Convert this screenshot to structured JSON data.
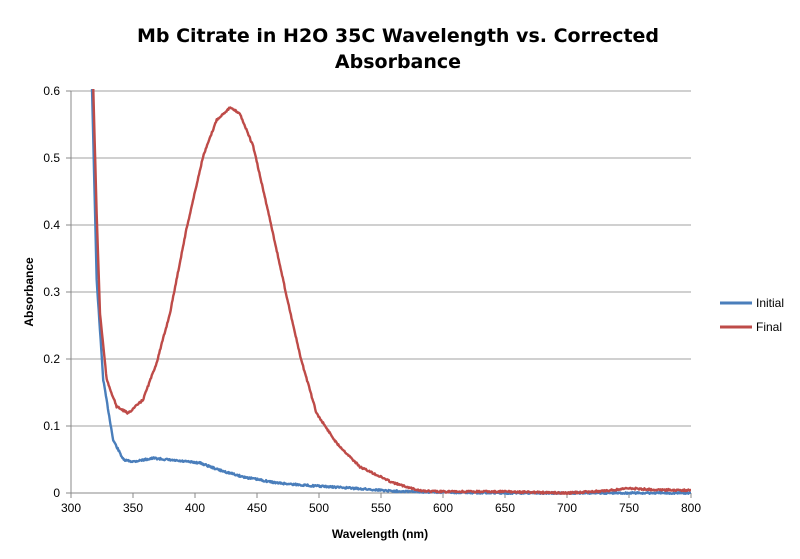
{
  "chart_data": {
    "type": "line",
    "title": "Mb Citrate in H2O 35C Wavelength vs. Corrected Absorbance",
    "title_lines": [
      "Mb Citrate in H2O 35C Wavelength vs. Corrected",
      "Absorbance"
    ],
    "xlabel": "Wavelength (nm)",
    "ylabel": "Absorbance",
    "xlim": [
      300,
      800
    ],
    "ylim": [
      0,
      0.6
    ],
    "xticks": [
      "300",
      "350",
      "400",
      "450",
      "500",
      "550",
      "600",
      "650",
      "700",
      "750",
      "800"
    ],
    "yticks": [
      "0",
      "0.1",
      "0.2",
      "0.3",
      "0.4",
      "0.5",
      "0.6"
    ],
    "grid": "horizontal",
    "legend_position": "right",
    "series": [
      {
        "name": "Initial",
        "color": "#4a7ebb",
        "x": [
          316,
          317,
          320.7,
          326,
          334,
          342.5,
          350.5,
          366.7,
          385.5,
          404,
          420,
          439,
          466,
          493,
          520,
          560,
          600,
          650,
          700,
          750,
          800
        ],
        "y": [
          0.7,
          0.6,
          0.318,
          0.169,
          0.079,
          0.049,
          0.047,
          0.052,
          0.048,
          0.045,
          0.034,
          0.024,
          0.015,
          0.011,
          0.008,
          0.003,
          0.001,
          0.0,
          0.0,
          0.0,
          0.0
        ]
      },
      {
        "name": "Final",
        "color": "#be4b48",
        "x": [
          317,
          318,
          320.7,
          323.4,
          328.8,
          336.8,
          346,
          358,
          369,
          379.8,
          393,
          406.5,
          417.5,
          428,
          436,
          447,
          460.6,
          474,
          485,
          498,
          514,
          533,
          560,
          583,
          600,
          650,
          700,
          730,
          750,
          770,
          800
        ],
        "y": [
          0.7,
          0.6,
          0.417,
          0.268,
          0.169,
          0.129,
          0.119,
          0.139,
          0.194,
          0.268,
          0.393,
          0.502,
          0.557,
          0.575,
          0.567,
          0.517,
          0.407,
          0.293,
          0.203,
          0.119,
          0.075,
          0.039,
          0.015,
          0.003,
          0.002,
          0.002,
          0.0,
          0.003,
          0.007,
          0.005,
          0.004
        ]
      }
    ]
  }
}
